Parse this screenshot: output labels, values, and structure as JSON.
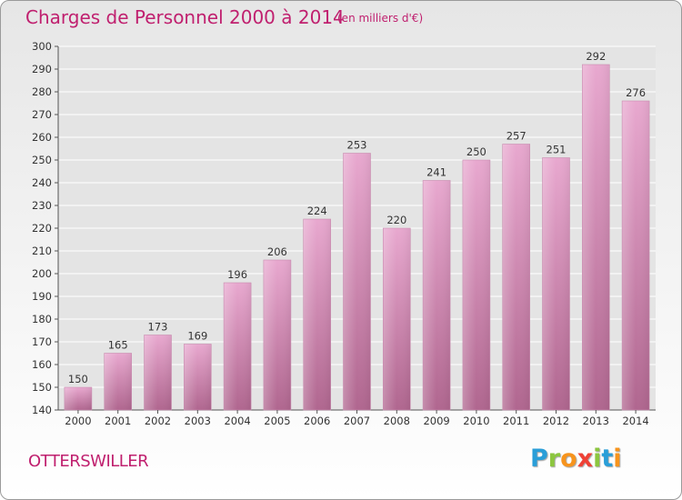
{
  "title": "Charges de Personnel 2000 à 2014",
  "subtitle": "(en milliers d'€)",
  "commune": "OTTERSWILLER",
  "logo": {
    "letters": [
      "P",
      "r",
      "o",
      "x",
      "i",
      "t",
      "i"
    ],
    "colors": [
      "#2a9ed8",
      "#8cc63f",
      "#f7941d",
      "#ef4136",
      "#8cc63f",
      "#2a9ed8",
      "#f7941d"
    ]
  },
  "colors": {
    "accent": "#c0206f",
    "bar_top": "#e8a8cf",
    "bar_bottom": "#b0668f"
  },
  "chart_data": {
    "type": "bar",
    "categories": [
      "2000",
      "2001",
      "2002",
      "2003",
      "2004",
      "2005",
      "2006",
      "2007",
      "2008",
      "2009",
      "2010",
      "2011",
      "2012",
      "2013",
      "2014"
    ],
    "values": [
      150,
      165,
      173,
      169,
      196,
      206,
      224,
      253,
      220,
      241,
      250,
      257,
      251,
      292,
      276
    ],
    "ylim": [
      140,
      300
    ],
    "yticks": [
      140,
      150,
      160,
      170,
      180,
      190,
      200,
      210,
      220,
      230,
      240,
      250,
      260,
      270,
      280,
      290,
      300
    ],
    "grid": true
  }
}
